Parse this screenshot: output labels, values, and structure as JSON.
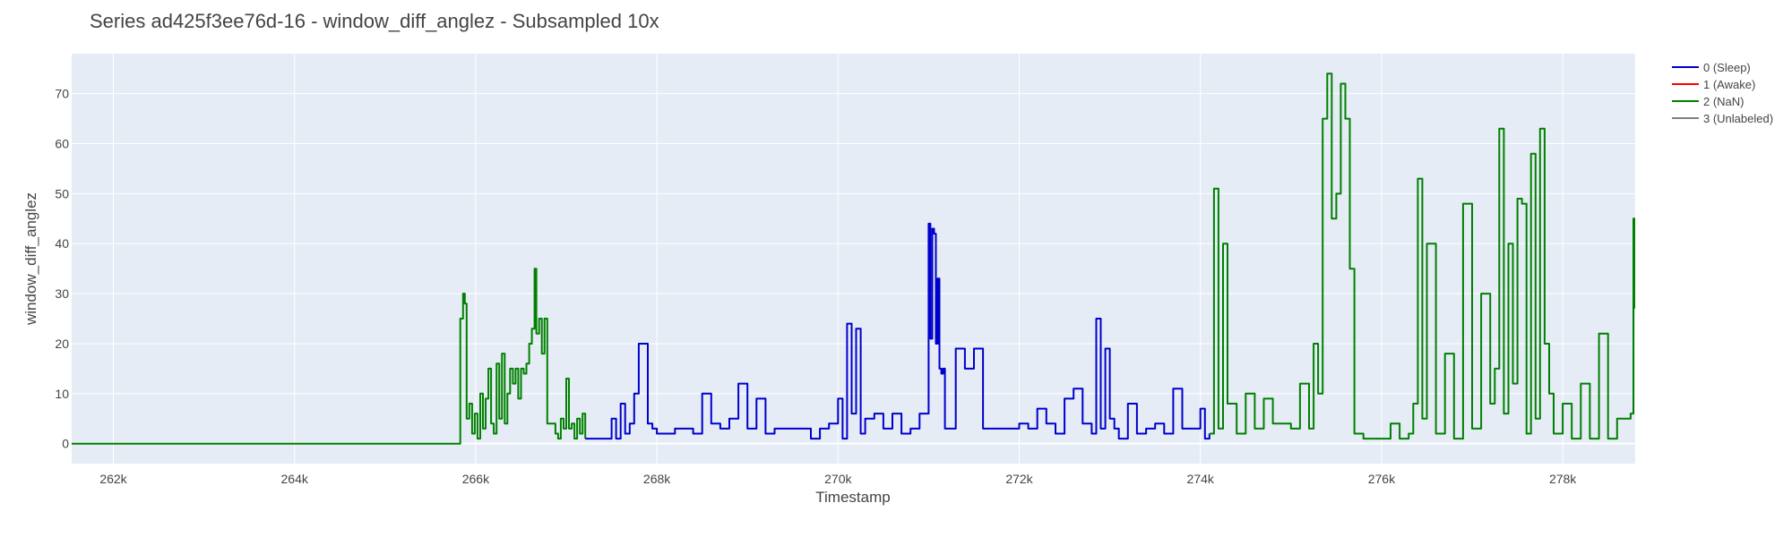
{
  "chart_data": {
    "type": "line",
    "title": "Series ad425f3ee76d-16 - window_diff_anglez - Subsampled 10x",
    "xlabel": "Timestamp",
    "ylabel": "window_diff_anglez",
    "xlim": [
      261540,
      278800
    ],
    "ylim": [
      -4,
      78
    ],
    "x_ticks": [
      262000,
      264000,
      266000,
      268000,
      270000,
      272000,
      274000,
      276000,
      278000
    ],
    "x_tick_labels": [
      "262k",
      "264k",
      "266k",
      "268k",
      "270k",
      "272k",
      "274k",
      "276k",
      "278k"
    ],
    "y_ticks": [
      0,
      10,
      20,
      30,
      40,
      50,
      60,
      70
    ],
    "y_tick_labels": [
      "0",
      "10",
      "20",
      "30",
      "40",
      "50",
      "60",
      "70"
    ],
    "grid": true,
    "legend_position": "top-right, outside plot",
    "colors": {
      "plot_background": "#e5ecf6",
      "grid": "#ffffff",
      "sleep": "#0000cc",
      "awake": "#ff0000",
      "nan": "#008000",
      "unlabeled": "#808080"
    },
    "legend": [
      {
        "label": "0 (Sleep)",
        "color": "#0000cc"
      },
      {
        "label": "1 (Awake)",
        "color": "#ff0000"
      },
      {
        "label": "2 (NaN)",
        "color": "#008000"
      },
      {
        "label": "3 (Unlabeled)",
        "color": "#808080"
      }
    ],
    "series": [
      {
        "name": "2 (NaN)",
        "color": "#008000",
        "segments": [
          {
            "x": [
              261540,
              263000,
              264500,
              265500,
              265800,
              265830,
              265860,
              265880,
              265900,
              265930,
              265960,
              265990,
              266020,
              266050,
              266080,
              266110,
              266140,
              266170,
              266200,
              266230,
              266260,
              266290,
              266320,
              266350,
              266380,
              266410,
              266440,
              266470,
              266500,
              266530,
              266560,
              266590,
              266620,
              266650,
              266670,
              266700,
              266730,
              266760,
              266790,
              266820,
              266850,
              266880,
              266910,
              266940,
              266970,
              267000,
              267030,
              267060,
              267090,
              267120,
              267150,
              267180,
              267210
            ],
            "y": [
              0,
              0,
              0,
              0,
              0,
              25,
              30,
              28,
              5,
              8,
              2,
              6,
              1,
              10,
              3,
              9,
              15,
              4,
              2,
              16,
              5,
              18,
              4,
              10,
              15,
              12,
              15,
              9,
              15,
              14,
              16,
              20,
              23,
              35,
              22,
              25,
              18,
              25,
              4,
              4,
              4,
              2,
              1,
              5,
              3,
              13,
              3,
              4,
              1,
              5,
              2,
              6,
              1
            ]
          }
        ]
      },
      {
        "name": "0 (Sleep)",
        "color": "#0000cc",
        "segments": [
          {
            "x": [
              267210,
              267300,
              267400,
              267500,
              267550,
              267600,
              267650,
              267700,
              267750,
              267800,
              267850,
              267900,
              267950,
              268000,
              268100,
              268200,
              268300,
              268400,
              268500,
              268600,
              268700,
              268800,
              268900,
              269000,
              269100,
              269200,
              269300,
              269400,
              269500,
              269600,
              269700,
              269800,
              269900,
              270000,
              270050,
              270100,
              270150,
              270200,
              270250,
              270300,
              270400,
              270500,
              270600,
              270700,
              270800,
              270900,
              271000,
              271020,
              271040,
              271060,
              271080,
              271100,
              271120,
              271140,
              271160,
              271180,
              271200,
              271300,
              271400,
              271500,
              271600,
              271700,
              271800,
              271900,
              272000,
              272100,
              272200,
              272300,
              272400,
              272500,
              272600,
              272700,
              272800,
              272850,
              272900,
              272950,
              273000,
              273050,
              273100,
              273200,
              273300,
              273400,
              273500,
              273600,
              273700,
              273800,
              273900,
              274000,
              274050,
              274100
            ],
            "y": [
              1,
              1,
              1,
              5,
              1,
              8,
              2,
              4,
              10,
              20,
              20,
              4,
              3,
              2,
              2,
              3,
              3,
              2,
              10,
              4,
              3,
              5,
              12,
              3,
              9,
              2,
              3,
              3,
              3,
              3,
              1,
              3,
              4,
              9,
              1,
              24,
              6,
              23,
              2,
              5,
              6,
              3,
              6,
              2,
              3,
              6,
              44,
              21,
              43,
              42,
              20,
              33,
              15,
              14,
              15,
              3,
              3,
              19,
              15,
              19,
              3,
              3,
              3,
              3,
              4,
              3,
              7,
              4,
              2,
              9,
              11,
              4,
              2,
              25,
              3,
              19,
              5,
              3,
              1,
              8,
              2,
              3,
              4,
              2,
              11,
              3,
              3,
              7,
              1,
              2
            ]
          }
        ]
      },
      {
        "name": "2 (NaN)",
        "color": "#008000",
        "segments": [
          {
            "x": [
              274100,
              274150,
              274200,
              274250,
              274300,
              274400,
              274500,
              274600,
              274700,
              274800,
              274900,
              275000,
              275100,
              275200,
              275250,
              275300,
              275350,
              275400,
              275450,
              275500,
              275550,
              275600,
              275650,
              275700,
              275800,
              275900,
              276000,
              276100,
              276200,
              276300,
              276350,
              276400,
              276450,
              276500,
              276600,
              276700,
              276800,
              276900,
              277000,
              277100,
              277200,
              277250,
              277300,
              277350,
              277400,
              277450,
              277500,
              277550,
              277600,
              277650,
              277700,
              277750,
              277800,
              277850,
              277900,
              278000,
              278100,
              278200,
              278300,
              278400,
              278500,
              278600,
              278700,
              278750,
              278780,
              278800
            ],
            "y": [
              2,
              51,
              3,
              40,
              8,
              2,
              10,
              3,
              9,
              4,
              4,
              3,
              12,
              3,
              20,
              10,
              65,
              74,
              45,
              50,
              72,
              65,
              35,
              2,
              1,
              1,
              1,
              4,
              1,
              2,
              8,
              53,
              5,
              40,
              2,
              18,
              1,
              48,
              3,
              30,
              8,
              15,
              63,
              6,
              40,
              12,
              49,
              48,
              2,
              58,
              5,
              63,
              20,
              10,
              2,
              8,
              1,
              12,
              1,
              22,
              1,
              5,
              5,
              6,
              45,
              27
            ]
          }
        ]
      }
    ]
  }
}
